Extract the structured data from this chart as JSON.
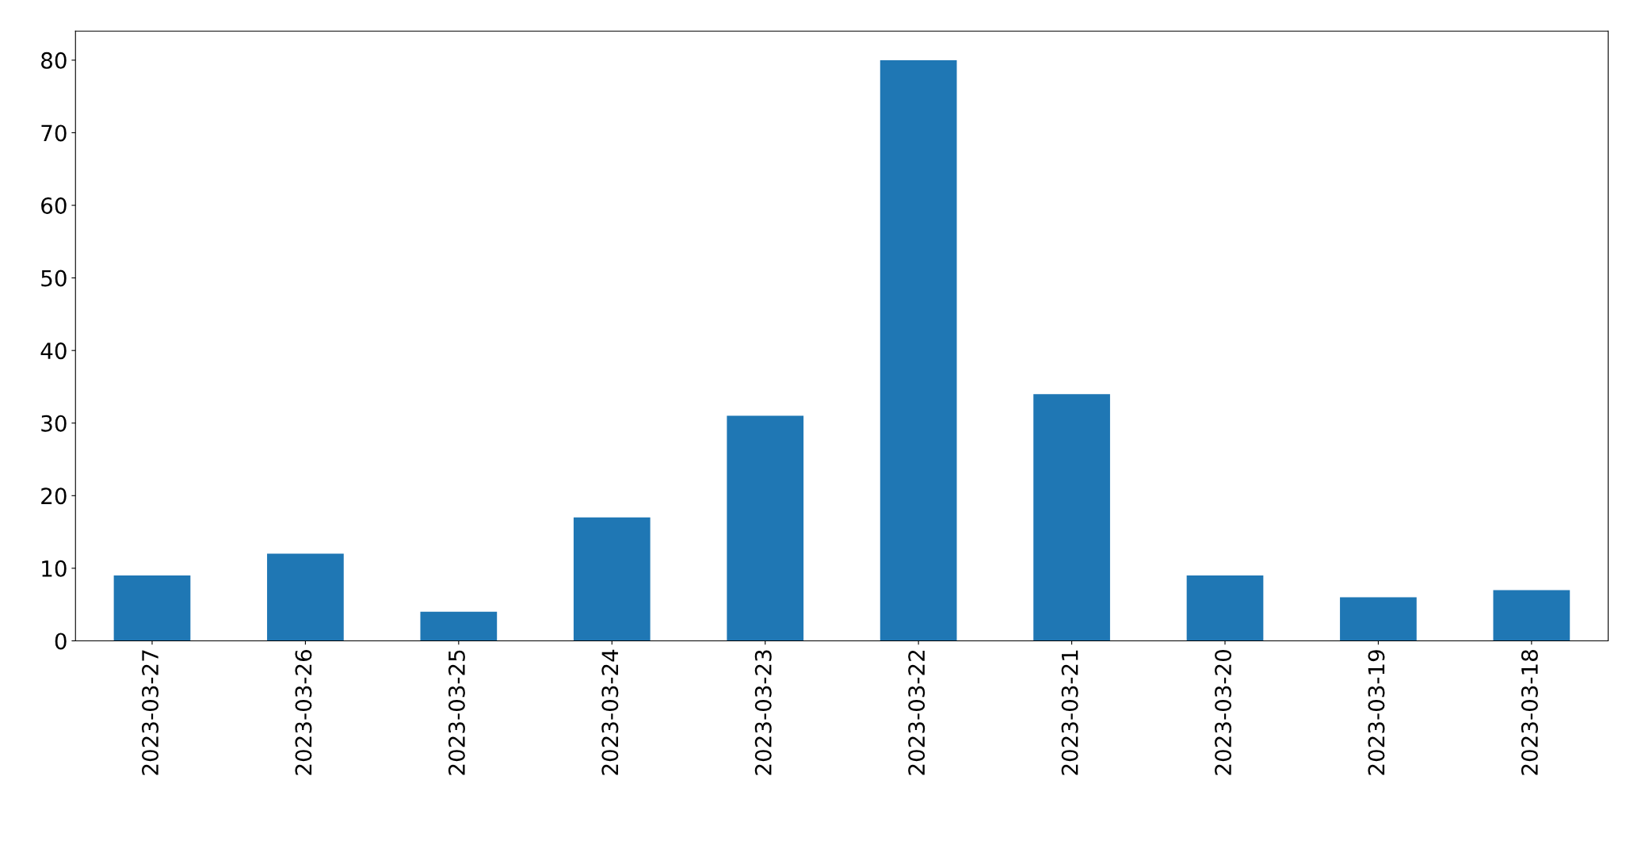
{
  "chart_data": {
    "type": "bar",
    "categories": [
      "2023-03-27",
      "2023-03-26",
      "2023-03-25",
      "2023-03-24",
      "2023-03-23",
      "2023-03-22",
      "2023-03-21",
      "2023-03-20",
      "2023-03-19",
      "2023-03-18"
    ],
    "values": [
      9,
      12,
      4,
      17,
      31,
      80,
      34,
      9,
      6,
      7
    ],
    "color": "#1f77b4",
    "ylim": [
      0,
      84
    ],
    "yticks": [
      0,
      10,
      20,
      30,
      40,
      50,
      60,
      70,
      80
    ],
    "grid": false
  }
}
